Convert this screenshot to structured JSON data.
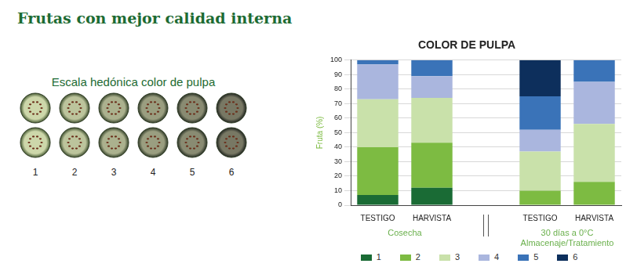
{
  "title_main": "Frutas con mejor calidad interna",
  "hedonic_scale": {
    "title": "Escala hedónica color de pulpa",
    "labels": [
      "1",
      "2",
      "3",
      "4",
      "5",
      "6"
    ]
  },
  "chart_data": {
    "type": "bar",
    "title": "COLOR DE PULPA",
    "y_label": "Fruta (%)",
    "categories": [
      "TESTIGO",
      "HARVISTA",
      null,
      "TESTIGO",
      "HARVISTA"
    ],
    "category_groups": [
      [
        "Cosecha"
      ],
      [
        "Cosecha"
      ],
      null,
      [
        "30 días a 0°C",
        "Almacenaje/Tratamiento"
      ],
      [
        "30 días a 0°C",
        "Almacenaje/Tratamiento"
      ]
    ],
    "series": [
      {
        "name": "1",
        "color": "#1a6b35",
        "values": [
          7,
          12,
          null,
          0,
          0
        ]
      },
      {
        "name": "2",
        "color": "#7dbb42",
        "values": [
          33,
          31,
          null,
          10,
          16
        ]
      },
      {
        "name": "3",
        "color": "#c9e1aa",
        "values": [
          33,
          31,
          null,
          27,
          40
        ]
      },
      {
        "name": "4",
        "color": "#aab6de",
        "values": [
          24,
          15,
          null,
          15,
          29
        ]
      },
      {
        "name": "5",
        "color": "#3a73b8",
        "values": [
          3,
          11,
          null,
          23,
          15
        ]
      },
      {
        "name": "6",
        "color": "#0d2f5c",
        "values": [
          0,
          0,
          null,
          25,
          0
        ]
      }
    ],
    "ylim": [
      0,
      100
    ],
    "yticks": [
      0,
      10,
      20,
      30,
      40,
      50,
      60,
      70,
      80,
      90,
      100
    ],
    "stacked": true,
    "grid": true,
    "legend": "bottom"
  }
}
